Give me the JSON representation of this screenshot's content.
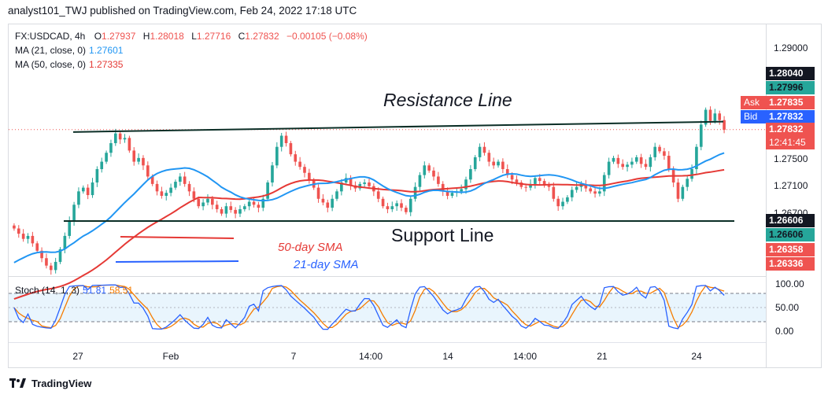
{
  "header": {
    "text": "analyst101_TWJ published on TradingView.com, Feb 24, 2022 17:18 UTC"
  },
  "legend": {
    "symbol": "FX:USDCAD, 4h",
    "o_label": "O",
    "o": "1.27937",
    "h_label": "H",
    "h": "1.28018",
    "l_label": "L",
    "l": "1.27716",
    "c_label": "C",
    "c": "1.27832",
    "change": "−0.00105 (−0.08%)",
    "ma21_label": "MA (21, close, 0)",
    "ma21_value": "1.27601",
    "ma50_label": "MA (50, close, 0)",
    "ma50_value": "1.27335",
    "stoch_label": "Stoch (14, 1, 3)",
    "stoch_k": "51.81",
    "stoch_d": "58.51"
  },
  "annotations": {
    "resistance": "Resistance Line",
    "support": "Support Line",
    "sma50": "50-day SMA",
    "sma21": "21-day SMA"
  },
  "price_axis": {
    "ticks": [
      "1.29000",
      "1.27500",
      "1.27100",
      "1.26700"
    ],
    "badges": [
      {
        "text": "1.28040",
        "bg": "#131722",
        "fg": "#ffffff"
      },
      {
        "text": "1.27996",
        "bg": "#26a69a",
        "fg": "#131722"
      },
      {
        "text": "Ask",
        "value": "1.27835",
        "bg": "#ef5350",
        "fg": "#ffffff"
      },
      {
        "text": "Bid",
        "value": "1.27832",
        "bg": "#2962ff",
        "fg": "#ffffff"
      },
      {
        "text": "1.27832",
        "sub": "12:41:45",
        "bg": "#ef5350",
        "fg": "#ffffff"
      },
      {
        "text": "1.26606",
        "bg": "#131722",
        "fg": "#ffffff"
      },
      {
        "text": "1.26606",
        "bg": "#26a69a",
        "fg": "#131722"
      },
      {
        "text": "1.26358",
        "bg": "#ef5350",
        "fg": "#ffffff"
      },
      {
        "text": "1.26336",
        "bg": "#ef5350",
        "fg": "#ffffff"
      }
    ]
  },
  "stoch_axis": {
    "ticks": [
      "100.00",
      "50.00",
      "0.00"
    ]
  },
  "time_axis": {
    "labels": [
      "27",
      "Feb",
      "7",
      "14:00",
      "14",
      "14:00",
      "21",
      "24"
    ]
  },
  "footer": {
    "brand": "TradingView"
  },
  "colors": {
    "up": "#26a69a",
    "down": "#ef5350",
    "ma21": "#2196f3",
    "ma50": "#e53935",
    "stoch_k": "#2962ff",
    "stoch_d": "#f57c00",
    "lines": "#0b2e26"
  },
  "chart_data": {
    "type": "candlestick",
    "symbol": "FX:USDCAD",
    "interval": "4h",
    "price_range": [
      1.2588,
      1.2925
    ],
    "stoch_range": [
      0,
      100
    ],
    "close_series": [
      1.265,
      1.2643,
      1.2636,
      1.264,
      1.263,
      1.262,
      1.261,
      1.26,
      1.2594,
      1.2605,
      1.2622,
      1.264,
      1.266,
      1.2682,
      1.27,
      1.2705,
      1.2695,
      1.2712,
      1.273,
      1.274,
      1.2752,
      1.2765,
      1.2778,
      1.277,
      1.2772,
      1.2755,
      1.274,
      1.2745,
      1.2735,
      1.272,
      1.271,
      1.27,
      1.2694,
      1.2698,
      1.2705,
      1.2713,
      1.272,
      1.271,
      1.27,
      1.269,
      1.268,
      1.2685,
      1.269,
      1.2682,
      1.2676,
      1.267,
      1.268,
      1.2675,
      1.267,
      1.2676,
      1.268,
      1.2686,
      1.2682,
      1.2678,
      1.269,
      1.2712,
      1.2735,
      1.276,
      1.2775,
      1.2765,
      1.275,
      1.274,
      1.2733,
      1.2725,
      1.2715,
      1.2705,
      1.269,
      1.2685,
      1.2678,
      1.269,
      1.27,
      1.2712,
      1.2718,
      1.2708,
      1.2704,
      1.271,
      1.2712,
      1.2707,
      1.27,
      1.269,
      1.268,
      1.2676,
      1.268,
      1.2684,
      1.2678,
      1.2672,
      1.269,
      1.2706,
      1.2722,
      1.2735,
      1.2728,
      1.272,
      1.271,
      1.27,
      1.2694,
      1.2698,
      1.27,
      1.2703,
      1.2716,
      1.273,
      1.2746,
      1.276,
      1.2752,
      1.274,
      1.2735,
      1.274,
      1.273,
      1.2722,
      1.2716,
      1.2712,
      1.2706,
      1.2705,
      1.271,
      1.2718,
      1.2714,
      1.2708,
      1.2706,
      1.269,
      1.268,
      1.2686,
      1.2692,
      1.2702,
      1.2706,
      1.271,
      1.2704,
      1.27,
      1.2697,
      1.27,
      1.2722,
      1.274,
      1.2745,
      1.2737,
      1.2733,
      1.2736,
      1.274,
      1.2746,
      1.2737,
      1.2733,
      1.2746,
      1.276,
      1.2754,
      1.2748,
      1.273,
      1.2712,
      1.269,
      1.2706,
      1.2717,
      1.273,
      1.276,
      1.279,
      1.281,
      1.2795,
      1.2805,
      1.2796,
      1.2783
    ],
    "ma21_series": [
      1.2604,
      1.276
    ],
    "ma50_series": [
      1.2555,
      1.2734
    ],
    "support_level": 1.266,
    "resistance_level_start": 1.278,
    "resistance_level_end": 1.2794
  }
}
